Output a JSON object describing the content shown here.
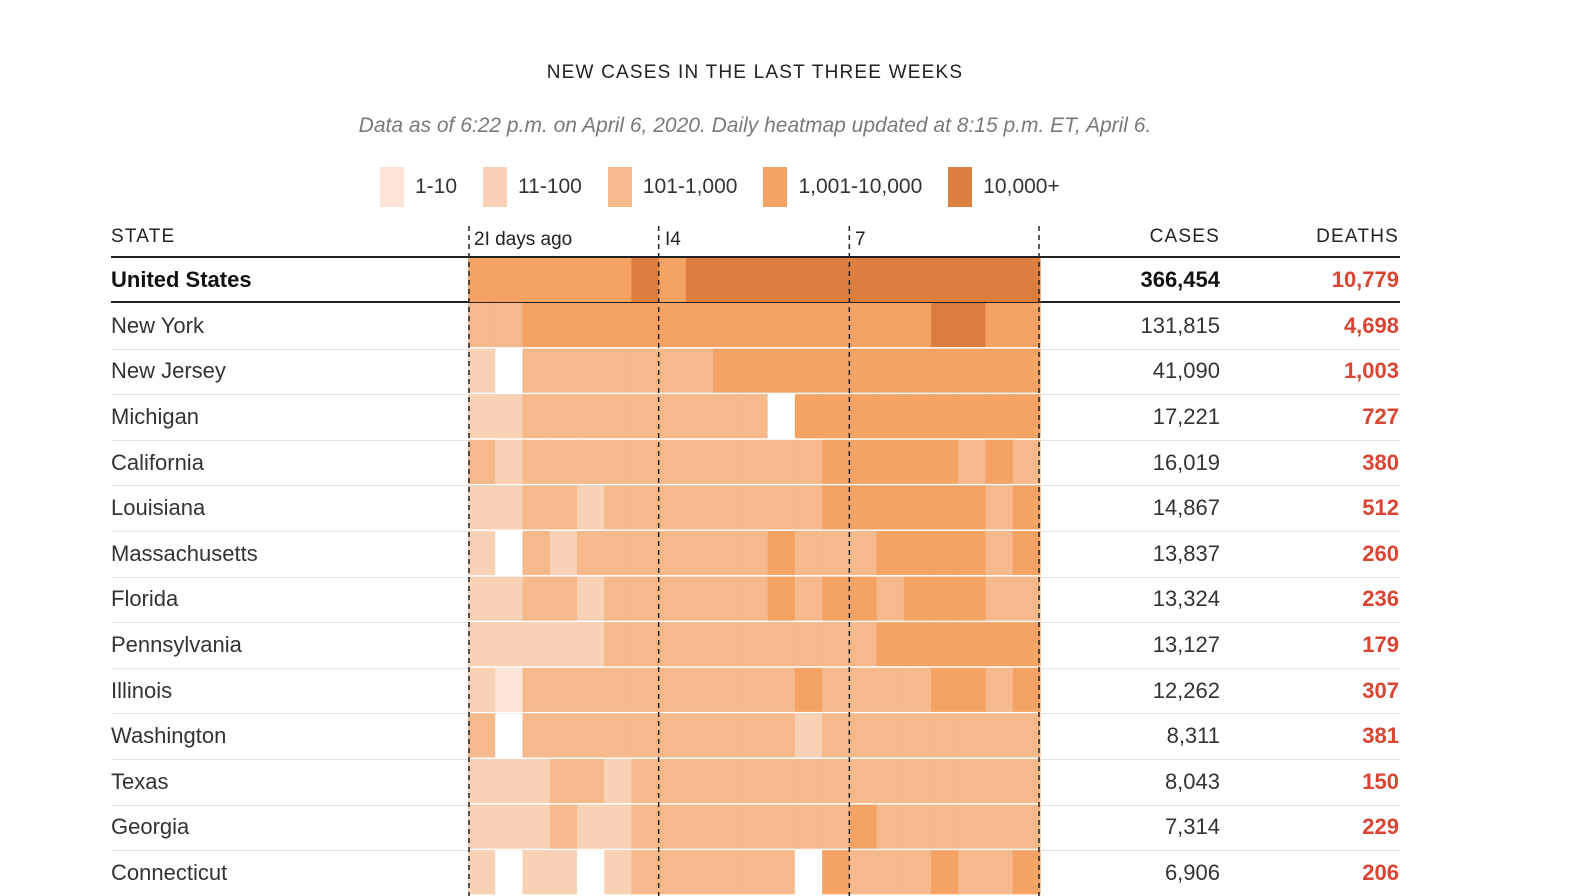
{
  "title": "NEW CASES IN THE LAST THREE WEEKS",
  "subtitle": "Data as of 6:22 p.m. on April 6, 2020. Daily heatmap updated at 8:15 p.m. ET, April 6.",
  "legend": [
    {
      "label": "1-10",
      "color": "#fce4d6"
    },
    {
      "label": "11-100",
      "color": "#f9d1b4"
    },
    {
      "label": "101-1,000",
      "color": "#f6b98b"
    },
    {
      "label": "1,001-10,000",
      "color": "#f4a364"
    },
    {
      "label": "10,000+",
      "color": "#dc7f3e"
    }
  ],
  "headers": {
    "state": "STATE",
    "cases": "CASES",
    "deaths": "DEATHS"
  },
  "ticks": [
    "2I days ago",
    "I4",
    "7"
  ],
  "chart_data": {
    "type": "heatmap",
    "title": "NEW CASES IN THE LAST THREE WEEKS",
    "x_days": 21,
    "value_scale": "bucket index: 0 = none, 1 = 1-10, 2 = 11-100, 3 = 101-1,000, 4 = 1,001-10,000, 5 = 10,000+",
    "rows": [
      {
        "state": "United States",
        "cases": "366,454",
        "deaths": "10,779",
        "buckets": [
          4,
          4,
          4,
          4,
          4,
          4,
          5,
          4,
          5,
          5,
          5,
          5,
          5,
          5,
          5,
          5,
          5,
          5,
          5,
          5,
          5
        ]
      },
      {
        "state": "New York",
        "cases": "131,815",
        "deaths": "4,698",
        "buckets": [
          3,
          3,
          4,
          4,
          4,
          4,
          4,
          4,
          4,
          4,
          4,
          4,
          4,
          4,
          4,
          4,
          4,
          5,
          5,
          4,
          4
        ]
      },
      {
        "state": "New Jersey",
        "cases": "41,090",
        "deaths": "1,003",
        "buckets": [
          2,
          0,
          3,
          3,
          3,
          3,
          3,
          3,
          3,
          4,
          4,
          4,
          4,
          4,
          4,
          4,
          4,
          4,
          4,
          4,
          4
        ]
      },
      {
        "state": "Michigan",
        "cases": "17,221",
        "deaths": "727",
        "buckets": [
          2,
          2,
          3,
          3,
          3,
          3,
          3,
          3,
          3,
          3,
          3,
          0,
          4,
          4,
          4,
          4,
          4,
          4,
          4,
          4,
          4
        ]
      },
      {
        "state": "California",
        "cases": "16,019",
        "deaths": "380",
        "buckets": [
          3,
          2,
          3,
          3,
          3,
          3,
          3,
          3,
          3,
          3,
          3,
          3,
          3,
          4,
          4,
          4,
          4,
          4,
          3,
          4,
          3
        ]
      },
      {
        "state": "Louisiana",
        "cases": "14,867",
        "deaths": "512",
        "buckets": [
          2,
          2,
          3,
          3,
          2,
          3,
          3,
          3,
          3,
          3,
          3,
          3,
          3,
          4,
          4,
          4,
          4,
          4,
          4,
          3,
          4
        ]
      },
      {
        "state": "Massachusetts",
        "cases": "13,837",
        "deaths": "260",
        "buckets": [
          2,
          0,
          3,
          2,
          3,
          3,
          3,
          3,
          3,
          3,
          3,
          4,
          3,
          3,
          3,
          4,
          4,
          4,
          4,
          3,
          4
        ]
      },
      {
        "state": "Florida",
        "cases": "13,324",
        "deaths": "236",
        "buckets": [
          2,
          2,
          3,
          3,
          2,
          3,
          3,
          3,
          3,
          3,
          3,
          4,
          3,
          4,
          4,
          3,
          4,
          4,
          4,
          3,
          3
        ]
      },
      {
        "state": "Pennsylvania",
        "cases": "13,127",
        "deaths": "179",
        "buckets": [
          2,
          2,
          2,
          2,
          2,
          3,
          3,
          3,
          3,
          3,
          3,
          3,
          3,
          3,
          3,
          4,
          4,
          4,
          4,
          4,
          4
        ]
      },
      {
        "state": "Illinois",
        "cases": "12,262",
        "deaths": "307",
        "buckets": [
          2,
          1,
          3,
          3,
          3,
          3,
          3,
          3,
          3,
          3,
          3,
          3,
          4,
          3,
          3,
          3,
          3,
          4,
          4,
          3,
          4
        ]
      },
      {
        "state": "Washington",
        "cases": "8,311",
        "deaths": "381",
        "buckets": [
          3,
          0,
          3,
          3,
          3,
          3,
          3,
          3,
          3,
          3,
          3,
          3,
          2,
          3,
          3,
          3,
          3,
          3,
          3,
          3,
          3
        ]
      },
      {
        "state": "Texas",
        "cases": "8,043",
        "deaths": "150",
        "buckets": [
          2,
          2,
          2,
          3,
          3,
          2,
          3,
          3,
          3,
          3,
          3,
          3,
          3,
          3,
          3,
          3,
          3,
          3,
          3,
          3,
          3
        ]
      },
      {
        "state": "Georgia",
        "cases": "7,314",
        "deaths": "229",
        "buckets": [
          2,
          2,
          2,
          3,
          2,
          2,
          3,
          3,
          3,
          3,
          3,
          3,
          3,
          3,
          4,
          3,
          3,
          3,
          3,
          3,
          3
        ]
      },
      {
        "state": "Connecticut",
        "cases": "6,906",
        "deaths": "206",
        "buckets": [
          2,
          0,
          2,
          2,
          0,
          2,
          3,
          3,
          3,
          3,
          3,
          3,
          0,
          4,
          3,
          3,
          3,
          4,
          3,
          3,
          4
        ]
      }
    ]
  }
}
